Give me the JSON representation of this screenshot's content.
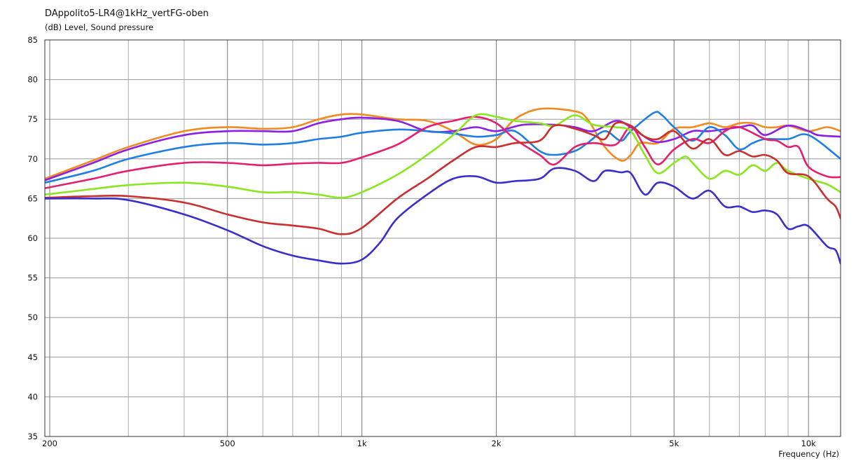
{
  "chart_data": {
    "type": "line",
    "title": "DAppolito5-LR4@1kHz_vertFG-oben",
    "ylabel": "(dB)  Level, Sound pressure",
    "xlabel": "Frequency  (Hz)",
    "x_scale": "log",
    "xlim": [
      195,
      11800
    ],
    "ylim": [
      35,
      85
    ],
    "y_ticks": [
      35,
      40,
      45,
      50,
      55,
      60,
      65,
      70,
      75,
      80,
      85
    ],
    "x_ticks": [
      {
        "value": 200,
        "label": "200"
      },
      {
        "value": 500,
        "label": "500"
      },
      {
        "value": 1000,
        "label": "1k"
      },
      {
        "value": 2000,
        "label": "2k"
      },
      {
        "value": 5000,
        "label": "5k"
      },
      {
        "value": 10000,
        "label": "10k"
      }
    ],
    "grid_minor_x": [
      300,
      400,
      600,
      700,
      800,
      900,
      3000,
      4000,
      6000,
      7000,
      8000,
      9000
    ],
    "grid": true,
    "series": [
      {
        "color": "#f28a1e",
        "points": [
          [
            195,
            67.5
          ],
          [
            250,
            69.8
          ],
          [
            300,
            71.5
          ],
          [
            400,
            73.5
          ],
          [
            500,
            74
          ],
          [
            600,
            73.8
          ],
          [
            700,
            74
          ],
          [
            800,
            75
          ],
          [
            900,
            75.6
          ],
          [
            1000,
            75.6
          ],
          [
            1200,
            75
          ],
          [
            1400,
            74.8
          ],
          [
            1600,
            73.5
          ],
          [
            1800,
            71.8
          ],
          [
            2000,
            72.5
          ],
          [
            2200,
            75
          ],
          [
            2500,
            76.3
          ],
          [
            3000,
            76
          ],
          [
            3200,
            75
          ],
          [
            3500,
            71.5
          ],
          [
            3800,
            69.8
          ],
          [
            4000,
            70.5
          ],
          [
            4200,
            72
          ],
          [
            4600,
            72
          ],
          [
            5000,
            73.8
          ],
          [
            5500,
            74
          ],
          [
            6000,
            74.5
          ],
          [
            6500,
            74
          ],
          [
            7000,
            74.5
          ],
          [
            7500,
            74.5
          ],
          [
            8000,
            74
          ],
          [
            8500,
            74
          ],
          [
            9000,
            74.2
          ],
          [
            10000,
            73.5
          ],
          [
            11000,
            74
          ],
          [
            11800,
            73.5
          ]
        ]
      },
      {
        "color": "#8c1ee6",
        "points": [
          [
            195,
            67.3
          ],
          [
            250,
            69.5
          ],
          [
            300,
            71.2
          ],
          [
            400,
            73
          ],
          [
            500,
            73.5
          ],
          [
            600,
            73.5
          ],
          [
            700,
            73.5
          ],
          [
            800,
            74.5
          ],
          [
            900,
            75
          ],
          [
            1000,
            75.2
          ],
          [
            1200,
            74.8
          ],
          [
            1400,
            73.5
          ],
          [
            1600,
            73.5
          ],
          [
            1800,
            74
          ],
          [
            2000,
            73.5
          ],
          [
            2300,
            74.3
          ],
          [
            2700,
            74.3
          ],
          [
            3000,
            74
          ],
          [
            3300,
            73.5
          ],
          [
            3700,
            74.8
          ],
          [
            4000,
            74
          ],
          [
            4500,
            72.2
          ],
          [
            5000,
            72.5
          ],
          [
            5500,
            73.5
          ],
          [
            6000,
            73.5
          ],
          [
            7000,
            74
          ],
          [
            7500,
            74.2
          ],
          [
            8000,
            73
          ],
          [
            9000,
            74.2
          ],
          [
            10000,
            73.5
          ],
          [
            10500,
            73
          ],
          [
            11800,
            72.8
          ]
        ]
      },
      {
        "color": "#1e7ee6",
        "points": [
          [
            195,
            67
          ],
          [
            250,
            68.5
          ],
          [
            300,
            70
          ],
          [
            400,
            71.5
          ],
          [
            500,
            72
          ],
          [
            600,
            71.8
          ],
          [
            700,
            72
          ],
          [
            800,
            72.5
          ],
          [
            900,
            72.8
          ],
          [
            1000,
            73.3
          ],
          [
            1200,
            73.7
          ],
          [
            1400,
            73.5
          ],
          [
            1600,
            73.2
          ],
          [
            1800,
            72.8
          ],
          [
            2000,
            73
          ],
          [
            2200,
            73.5
          ],
          [
            2500,
            71
          ],
          [
            2700,
            70.5
          ],
          [
            3000,
            71
          ],
          [
            3200,
            72
          ],
          [
            3500,
            73.5
          ],
          [
            3800,
            72.3
          ],
          [
            4000,
            73.5
          ],
          [
            4500,
            75.8
          ],
          [
            4700,
            75.5
          ],
          [
            5000,
            74
          ],
          [
            5500,
            72.3
          ],
          [
            6000,
            74
          ],
          [
            6500,
            73
          ],
          [
            7000,
            71.2
          ],
          [
            7500,
            72
          ],
          [
            8000,
            72.5
          ],
          [
            9000,
            72.5
          ],
          [
            10000,
            73
          ],
          [
            11800,
            70
          ]
        ]
      },
      {
        "color": "#e61e6e",
        "points": [
          [
            195,
            66.3
          ],
          [
            250,
            67.5
          ],
          [
            300,
            68.5
          ],
          [
            400,
            69.5
          ],
          [
            500,
            69.5
          ],
          [
            600,
            69.2
          ],
          [
            700,
            69.4
          ],
          [
            800,
            69.5
          ],
          [
            900,
            69.5
          ],
          [
            1000,
            70.2
          ],
          [
            1200,
            71.8
          ],
          [
            1400,
            74
          ],
          [
            1600,
            74.8
          ],
          [
            1800,
            75.3
          ],
          [
            2000,
            74.5
          ],
          [
            2200,
            72.5
          ],
          [
            2500,
            70.5
          ],
          [
            2700,
            69.3
          ],
          [
            3000,
            71.5
          ],
          [
            3300,
            72
          ],
          [
            3700,
            71.8
          ],
          [
            4000,
            74
          ],
          [
            4300,
            71.5
          ],
          [
            4600,
            69.3
          ],
          [
            5000,
            71.2
          ],
          [
            5500,
            72.5
          ],
          [
            6000,
            72
          ],
          [
            6500,
            73.5
          ],
          [
            7000,
            74
          ],
          [
            8000,
            72.5
          ],
          [
            8500,
            72.3
          ],
          [
            9000,
            71.5
          ],
          [
            9500,
            71.5
          ],
          [
            10000,
            69
          ],
          [
            11000,
            67.8
          ],
          [
            11800,
            67.7
          ]
        ]
      },
      {
        "color": "#8ae61e",
        "points": [
          [
            195,
            65.5
          ],
          [
            250,
            66.2
          ],
          [
            300,
            66.7
          ],
          [
            400,
            67
          ],
          [
            500,
            66.5
          ],
          [
            600,
            65.8
          ],
          [
            700,
            65.8
          ],
          [
            800,
            65.5
          ],
          [
            900,
            65.1
          ],
          [
            1000,
            65.8
          ],
          [
            1200,
            68
          ],
          [
            1400,
            70.5
          ],
          [
            1600,
            73
          ],
          [
            1800,
            75.5
          ],
          [
            2000,
            75.3
          ],
          [
            2200,
            74.8
          ],
          [
            2500,
            74.5
          ],
          [
            2700,
            74.2
          ],
          [
            3000,
            75.5
          ],
          [
            3300,
            74.3
          ],
          [
            3700,
            74
          ],
          [
            4000,
            73.5
          ],
          [
            4300,
            70.5
          ],
          [
            4600,
            68.2
          ],
          [
            5000,
            69.5
          ],
          [
            5300,
            70.3
          ],
          [
            5500,
            69.5
          ],
          [
            6000,
            67.5
          ],
          [
            6500,
            68.5
          ],
          [
            7000,
            68
          ],
          [
            7500,
            69.2
          ],
          [
            8000,
            68.5
          ],
          [
            8500,
            69.5
          ],
          [
            9000,
            68.5
          ],
          [
            10000,
            67.5
          ],
          [
            11000,
            66.8
          ],
          [
            11800,
            65.8
          ]
        ]
      },
      {
        "color": "#cc2e2e",
        "points": [
          [
            195,
            65.1
          ],
          [
            250,
            65.3
          ],
          [
            300,
            65.3
          ],
          [
            400,
            64.5
          ],
          [
            500,
            63
          ],
          [
            600,
            62
          ],
          [
            700,
            61.6
          ],
          [
            800,
            61.2
          ],
          [
            900,
            60.5
          ],
          [
            1000,
            61.3
          ],
          [
            1200,
            65
          ],
          [
            1400,
            67.5
          ],
          [
            1600,
            69.8
          ],
          [
            1800,
            71.5
          ],
          [
            2000,
            71.5
          ],
          [
            2200,
            72
          ],
          [
            2500,
            72.3
          ],
          [
            2700,
            74.2
          ],
          [
            3000,
            73.8
          ],
          [
            3300,
            73
          ],
          [
            3500,
            72.5
          ],
          [
            3700,
            74.5
          ],
          [
            4000,
            74.2
          ],
          [
            4300,
            72.8
          ],
          [
            4600,
            72.5
          ],
          [
            5000,
            73.5
          ],
          [
            5500,
            71.3
          ],
          [
            6000,
            72.5
          ],
          [
            6500,
            70.5
          ],
          [
            7000,
            71
          ],
          [
            7500,
            70.3
          ],
          [
            8000,
            70.5
          ],
          [
            8500,
            69.8
          ],
          [
            9000,
            68.2
          ],
          [
            10000,
            67.8
          ],
          [
            11000,
            65
          ],
          [
            11500,
            64
          ],
          [
            11800,
            62.5
          ]
        ]
      },
      {
        "color": "#3a2ecc",
        "points": [
          [
            195,
            65
          ],
          [
            250,
            65
          ],
          [
            300,
            64.8
          ],
          [
            400,
            63
          ],
          [
            500,
            61
          ],
          [
            600,
            59
          ],
          [
            700,
            57.8
          ],
          [
            800,
            57.2
          ],
          [
            900,
            56.8
          ],
          [
            1000,
            57.3
          ],
          [
            1100,
            59.5
          ],
          [
            1200,
            62.5
          ],
          [
            1400,
            65.5
          ],
          [
            1600,
            67.5
          ],
          [
            1800,
            67.8
          ],
          [
            2000,
            67
          ],
          [
            2200,
            67.2
          ],
          [
            2500,
            67.5
          ],
          [
            2700,
            68.8
          ],
          [
            3000,
            68.5
          ],
          [
            3300,
            67.2
          ],
          [
            3500,
            68.5
          ],
          [
            3800,
            68.3
          ],
          [
            4000,
            68.2
          ],
          [
            4300,
            65.5
          ],
          [
            4600,
            67
          ],
          [
            5000,
            66.5
          ],
          [
            5500,
            65
          ],
          [
            6000,
            66
          ],
          [
            6500,
            64
          ],
          [
            7000,
            64
          ],
          [
            7500,
            63.3
          ],
          [
            8000,
            63.5
          ],
          [
            8500,
            63
          ],
          [
            9000,
            61.2
          ],
          [
            9500,
            61.5
          ],
          [
            10000,
            61.5
          ],
          [
            11000,
            59
          ],
          [
            11500,
            58.5
          ],
          [
            11800,
            56.8
          ]
        ]
      }
    ]
  }
}
